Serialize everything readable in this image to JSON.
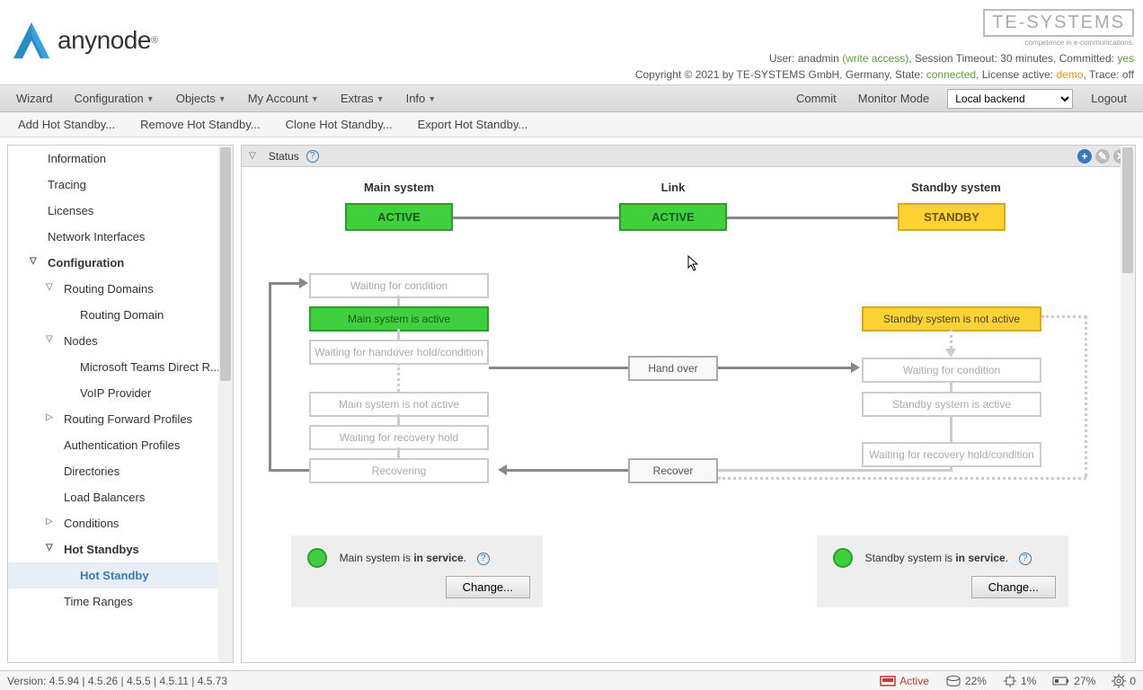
{
  "header": {
    "product": "anynode",
    "te_brand": "TE-SYSTEMS",
    "te_sub": "competence in e-communications.",
    "user_label": "User: ",
    "user": "anadmin",
    "user_access": " (write access)",
    "session": ", Session Timeout: 30 minutes, Committed: ",
    "committed": "yes",
    "copyright": "Copyright © 2021 by TE-SYSTEMS GmbH, Germany, State: ",
    "state": "connected",
    "license_label": ", License active: ",
    "license": "demo",
    "trace_label": ", Trace: ",
    "trace": "off"
  },
  "menubar": {
    "items": [
      "Wizard",
      "Configuration",
      "Objects",
      "My Account",
      "Extras",
      "Info"
    ],
    "dropdowns": [
      false,
      true,
      true,
      true,
      true,
      true
    ],
    "right": [
      "Commit",
      "Monitor Mode"
    ],
    "backend": "Local backend",
    "logout": "Logout"
  },
  "toolbar": {
    "items": [
      "Add Hot Standby...",
      "Remove Hot Standby...",
      "Clone Hot Standby...",
      "Export Hot Standby..."
    ]
  },
  "sidebar": [
    {
      "label": "Information",
      "lvl": 0
    },
    {
      "label": "Tracing",
      "lvl": 0
    },
    {
      "label": "Licenses",
      "lvl": 0
    },
    {
      "label": "Network Interfaces",
      "lvl": 0
    },
    {
      "label": "Configuration",
      "lvl": 1,
      "exp": true,
      "bold": true
    },
    {
      "label": "Routing Domains",
      "lvl": 2,
      "exp": true
    },
    {
      "label": "Routing Domain",
      "lvl": 3
    },
    {
      "label": "Nodes",
      "lvl": 2,
      "exp": true
    },
    {
      "label": "Microsoft Teams Direct R...",
      "lvl": 3
    },
    {
      "label": "VoIP Provider",
      "lvl": 3
    },
    {
      "label": "Routing Forward Profiles",
      "lvl": 2,
      "col": true
    },
    {
      "label": "Authentication Profiles",
      "lvl": 2
    },
    {
      "label": "Directories",
      "lvl": 2
    },
    {
      "label": "Load Balancers",
      "lvl": 2
    },
    {
      "label": "Conditions",
      "lvl": 2,
      "col": true
    },
    {
      "label": "Hot Standbys",
      "lvl": 2,
      "exp": true,
      "bold": true
    },
    {
      "label": "Hot Standby",
      "lvl": 3,
      "selected": true
    },
    {
      "label": "Time Ranges",
      "lvl": 2
    }
  ],
  "status": {
    "label": "Status"
  },
  "diagram": {
    "titles": {
      "main": "Main system",
      "link": "Link",
      "standby": "Standby system"
    },
    "states": {
      "main": "ACTIVE",
      "link": "ACTIVE",
      "standby": "STANDBY"
    },
    "flow": {
      "wait_cond": "Waiting for condition",
      "main_active": "Main system is active",
      "wait_handover": "Waiting for handover hold/condition",
      "main_not_active": "Main system is not active",
      "wait_recovery": "Waiting for recovery hold",
      "recovering": "Recovering",
      "handover": "Hand over",
      "recover": "Recover",
      "standby_not_active": "Standby system is not active",
      "standby_wait_cond": "Waiting for condition",
      "standby_active": "Standby system is active",
      "standby_wait_recovery": "Waiting for recovery hold/condition"
    },
    "colors": {
      "active_bg": "#3fcf3f",
      "standby_bg": "#ffd233"
    }
  },
  "service": {
    "main_prefix": "Main system is ",
    "main_status": "in service",
    "standby_prefix": "Standby system is ",
    "standby_status": "in service",
    "change": "Change..."
  },
  "footer": {
    "version": "Version: 4.5.94 | 4.5.26 | 4.5.5 | 4.5.11 | 4.5.73",
    "active": "Active",
    "disk": "22%",
    "cpu": "1%",
    "bat": "27%",
    "gear": "0"
  }
}
